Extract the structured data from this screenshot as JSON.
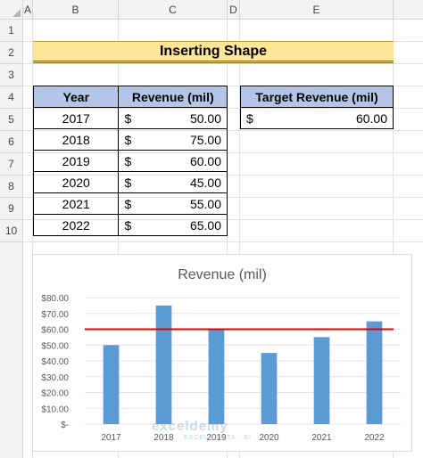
{
  "columns": [
    "A",
    "B",
    "C",
    "D",
    "E"
  ],
  "rows": [
    "1",
    "2",
    "3",
    "4",
    "5",
    "6",
    "7",
    "8",
    "9",
    "10"
  ],
  "title": "Inserting Shape",
  "table": {
    "headers": [
      "Year",
      "Revenue (mil)"
    ],
    "rows": [
      {
        "year": "2017",
        "currency": "$",
        "revenue": "50.00"
      },
      {
        "year": "2018",
        "currency": "$",
        "revenue": "75.00"
      },
      {
        "year": "2019",
        "currency": "$",
        "revenue": "60.00"
      },
      {
        "year": "2020",
        "currency": "$",
        "revenue": "45.00"
      },
      {
        "year": "2021",
        "currency": "$",
        "revenue": "55.00"
      },
      {
        "year": "2022",
        "currency": "$",
        "revenue": "65.00"
      }
    ]
  },
  "target": {
    "header": "Target Revenue (mil)",
    "currency": "$",
    "value": "60.00"
  },
  "watermark": {
    "name": "exceldemy",
    "tagline": "EXCEL · DATA · BI"
  },
  "chart_data": {
    "type": "bar",
    "title": "Revenue (mil)",
    "categories": [
      "2017",
      "2018",
      "2019",
      "2020",
      "2021",
      "2022"
    ],
    "values": [
      50,
      75,
      60,
      45,
      55,
      65
    ],
    "target_line": 60,
    "ylim": [
      0,
      80
    ],
    "yticks": [
      "$-",
      "$10.00",
      "$20.00",
      "$30.00",
      "$40.00",
      "$50.00",
      "$60.00",
      "$70.00",
      "$80.00"
    ],
    "bar_color": "#5b9bd5",
    "line_color": "#e00000",
    "grid": true,
    "legend": "none"
  }
}
